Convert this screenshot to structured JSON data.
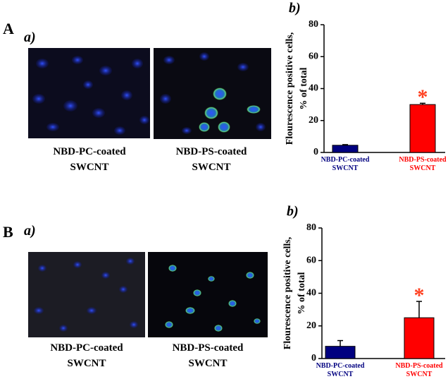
{
  "panels": [
    {
      "label": "A",
      "sub": "a)",
      "captions": [
        "NBD-PC-coated SWCNT",
        "NBD-PS-coated SWCNT"
      ]
    },
    {
      "label": "B",
      "sub": "a)",
      "captions": [
        "NBD-PC-coated SWCNT",
        "NBD-PS-coated SWCNT"
      ]
    }
  ],
  "chart_data": [
    {
      "type": "bar",
      "title": "b)",
      "ylabel": [
        "Flourescence positive cells,",
        "% of total"
      ],
      "categories": [
        "NBD-PC-coated SWCNT",
        "NBD-PS-coated SWCNT"
      ],
      "values": [
        4.5,
        30
      ],
      "errors": [
        0.4,
        0.8
      ],
      "colors": [
        "#000080",
        "#ff0000"
      ],
      "annotation": "*",
      "annotation_color": "#ff4020",
      "ylim": [
        0,
        80
      ],
      "yticks": [
        0,
        20,
        40,
        60,
        80
      ]
    },
    {
      "type": "bar",
      "title": "b)",
      "ylabel": [
        "Flourescence positive cells,",
        "% of total"
      ],
      "categories": [
        "NBD-PC-coated SWCNT",
        "NBD-PS-coated SWCNT"
      ],
      "values": [
        7.5,
        25
      ],
      "errors": [
        3.5,
        10
      ],
      "colors": [
        "#000080",
        "#ff0000"
      ],
      "annotation": "*",
      "annotation_color": "#ff4020",
      "ylim": [
        0,
        80
      ],
      "yticks": [
        0,
        20,
        40,
        60,
        80
      ]
    }
  ]
}
